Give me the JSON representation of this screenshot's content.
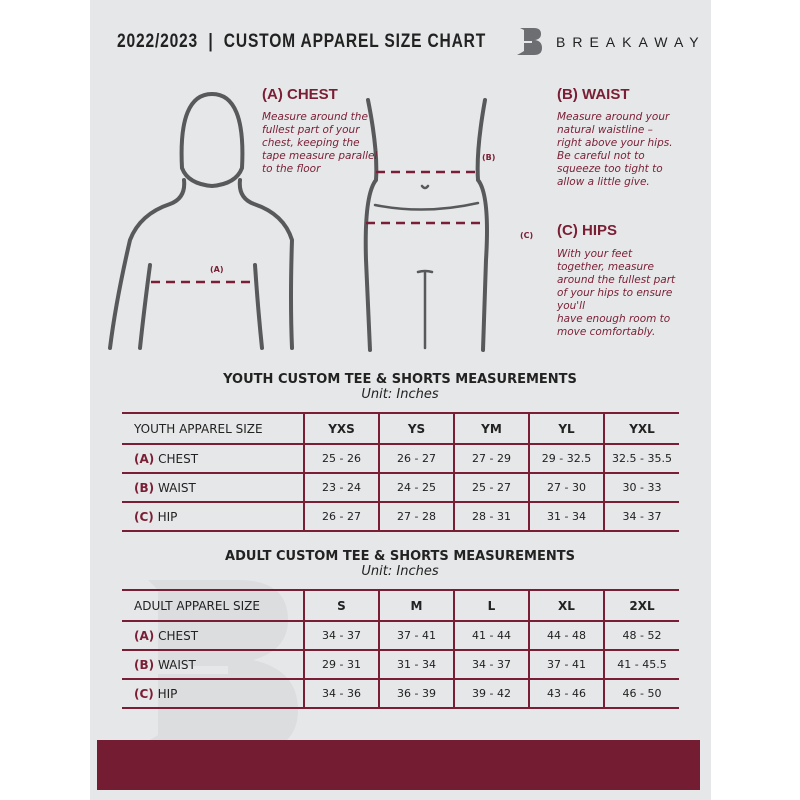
{
  "header": {
    "title": "2022/2023  |  CUSTOM APPAREL SIZE CHART",
    "brand": "BREAKAWAY",
    "logo_letter": "B"
  },
  "colors": {
    "accent": "#7a1e35",
    "background": "#e6e7e8",
    "footer": "#731c32"
  },
  "chest": {
    "heading": "(A) CHEST",
    "marker": "(A)",
    "lines": [
      "Measure around the",
      "fullest part of your",
      "chest, keeping the",
      "tape measure parallel",
      "to the floor"
    ]
  },
  "waist": {
    "heading": "(B) WAIST",
    "marker": "(B)",
    "lines": [
      "Measure around your",
      "natural waistline –",
      "right above your hips.",
      "Be careful not to",
      "squeeze too tight to",
      "allow a little give."
    ]
  },
  "hips": {
    "heading": "(C) HIPS",
    "marker": "(C)",
    "lines": [
      "With your feet",
      "together, measure",
      "around the fullest part",
      "of your hips to ensure",
      "you'll",
      "have enough room to",
      "move comfortably."
    ]
  },
  "youth": {
    "title": "YOUTH CUSTOM TEE & SHORTS MEASUREMENTS",
    "unit": "Unit: Inches",
    "size_label": "YOUTH APPAREL SIZE",
    "sizes": [
      "YXS",
      "YS",
      "YM",
      "YL",
      "YXL"
    ],
    "rows": [
      {
        "code": "(A)",
        "name": "CHEST",
        "values": [
          "25 - 26",
          "26 - 27",
          "27 - 29",
          "29 - 32.5",
          "32.5 - 35.5"
        ]
      },
      {
        "code": "(B)",
        "name": "WAIST",
        "values": [
          "23 - 24",
          "24 - 25",
          "25 - 27",
          "27 - 30",
          "30 - 33"
        ]
      },
      {
        "code": "(C)",
        "name": "HIP",
        "values": [
          "26 - 27",
          "27 - 28",
          "28 - 31",
          "31 - 34",
          "34 - 37"
        ]
      }
    ]
  },
  "adult": {
    "title": "ADULT CUSTOM TEE & SHORTS MEASUREMENTS",
    "unit": "Unit: Inches",
    "size_label": "ADULT APPAREL SIZE",
    "sizes": [
      "S",
      "M",
      "L",
      "XL",
      "2XL"
    ],
    "rows": [
      {
        "code": "(A)",
        "name": "CHEST",
        "values": [
          "34 - 37",
          "37 - 41",
          "41 - 44",
          "44 - 48",
          "48 - 52"
        ]
      },
      {
        "code": "(B)",
        "name": "WAIST",
        "values": [
          "29 - 31",
          "31 - 34",
          "34 - 37",
          "37 - 41",
          "41 - 45.5"
        ]
      },
      {
        "code": "(C)",
        "name": "HIP",
        "values": [
          "34 - 36",
          "36 - 39",
          "39 - 42",
          "43 - 46",
          "46 - 50"
        ]
      }
    ]
  }
}
